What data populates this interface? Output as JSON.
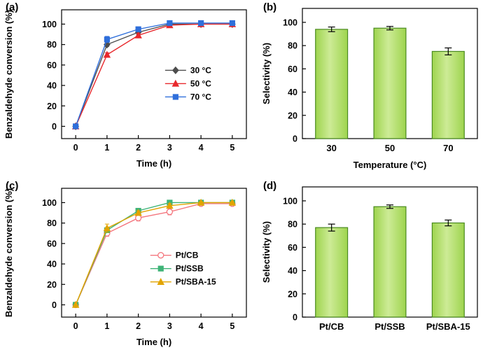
{
  "figure": {
    "background": "#ffffff"
  },
  "chart_data": [
    {
      "panel": "a",
      "panel_label": "(a)",
      "type": "line",
      "xlabel": "Time (h)",
      "ylabel": "Benzaldehyde conversion (%)",
      "xlim": [
        -0.45,
        5.45
      ],
      "ylim": [
        -12,
        114
      ],
      "xticks": [
        0,
        1,
        2,
        3,
        4,
        5
      ],
      "yticks": [
        0,
        20,
        40,
        60,
        80,
        100
      ],
      "x": [
        0,
        1,
        2,
        3,
        4,
        5
      ],
      "series": [
        {
          "name": "30 °C",
          "color": "#4d4d4d",
          "marker": "diamond",
          "values": [
            0,
            80,
            92,
            100,
            100,
            100
          ],
          "errors": [
            0,
            2,
            2,
            1,
            1,
            1
          ]
        },
        {
          "name": "50 °C",
          "color": "#e8282c",
          "marker": "triangle",
          "values": [
            0,
            70,
            89,
            99,
            100,
            100
          ],
          "errors": [
            0,
            2,
            2,
            1,
            1,
            1
          ]
        },
        {
          "name": "70 °C",
          "color": "#2f6fdb",
          "marker": "square",
          "values": [
            0,
            85,
            95,
            101,
            101,
            101
          ],
          "errors": [
            0,
            3,
            2,
            1,
            1,
            1
          ]
        }
      ],
      "legend": {
        "x": 0.56,
        "y": 0.47
      }
    },
    {
      "panel": "b",
      "panel_label": "(b)",
      "type": "bar",
      "xlabel": "Temperature (°C)",
      "ylabel": "Selectivity (%)",
      "ylim": [
        0,
        112
      ],
      "yticks": [
        0,
        20,
        40,
        60,
        80,
        100
      ],
      "categories": [
        "30",
        "50",
        "70"
      ],
      "values": [
        94,
        95,
        75
      ],
      "errors": [
        2,
        1.5,
        3
      ],
      "bar_fill": "#b9e169",
      "bar_edge": "#4a8a1f"
    },
    {
      "panel": "c",
      "panel_label": "(c)",
      "type": "line",
      "xlabel": "Time (h)",
      "ylabel": "Benzaldehyde conversion (%)",
      "xlim": [
        -0.45,
        5.45
      ],
      "ylim": [
        -12,
        114
      ],
      "xticks": [
        0,
        1,
        2,
        3,
        4,
        5
      ],
      "yticks": [
        0,
        20,
        40,
        60,
        80,
        100
      ],
      "x": [
        0,
        1,
        2,
        3,
        4,
        5
      ],
      "series": [
        {
          "name": "Pt/CB",
          "color": "#f4777f",
          "marker": "circle",
          "filled": false,
          "values": [
            0,
            70,
            85,
            91,
            99,
            99
          ],
          "errors": [
            0,
            3,
            3,
            3,
            1,
            1
          ]
        },
        {
          "name": "Pt/SSB",
          "color": "#3eb377",
          "marker": "square",
          "values": [
            0,
            73,
            92,
            100,
            100,
            100
          ],
          "errors": [
            0,
            2,
            2,
            1,
            1,
            1
          ]
        },
        {
          "name": "Pt/SBA-15",
          "color": "#e2a400",
          "marker": "triangle",
          "values": [
            0,
            75,
            90,
            97,
            100,
            100
          ],
          "errors": [
            0,
            4,
            2,
            2,
            1,
            1
          ]
        }
      ],
      "legend": {
        "x": 0.48,
        "y": 0.52
      }
    },
    {
      "panel": "d",
      "panel_label": "(d)",
      "type": "bar",
      "xlabel": "",
      "ylabel": "Selectivity (%)",
      "ylim": [
        0,
        112
      ],
      "yticks": [
        0,
        20,
        40,
        60,
        80,
        100
      ],
      "categories": [
        "Pt/CB",
        "Pt/SSB",
        "Pt/SBA-15"
      ],
      "values": [
        77,
        95,
        81
      ],
      "errors": [
        3,
        1.5,
        2.5
      ],
      "bar_fill": "#b9e169",
      "bar_edge": "#4a8a1f"
    }
  ]
}
